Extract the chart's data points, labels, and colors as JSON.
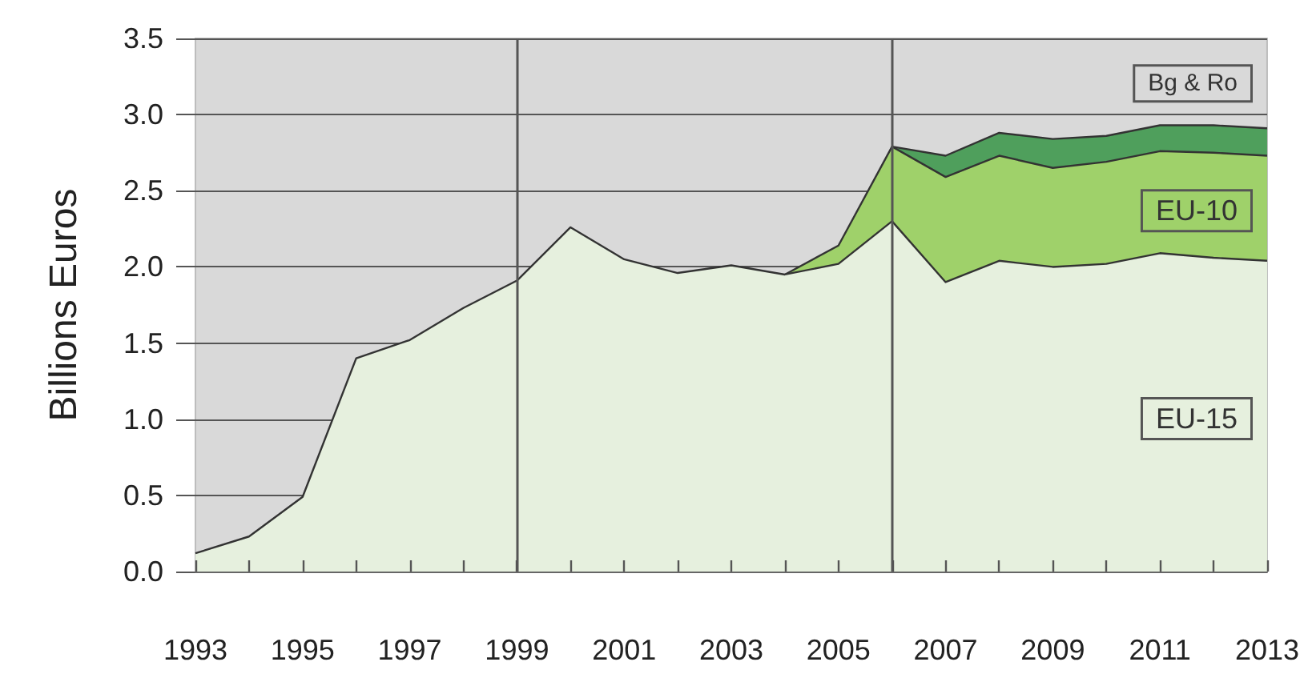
{
  "chart_data": {
    "type": "area",
    "stacked": true,
    "ylabel": "Billions Euros",
    "x": [
      1993,
      1994,
      1995,
      1996,
      1997,
      1998,
      1999,
      2000,
      2001,
      2002,
      2003,
      2004,
      2005,
      2006,
      2007,
      2008,
      2009,
      2010,
      2011,
      2012,
      2013
    ],
    "series": [
      {
        "name": "EU-15",
        "color": "#e6f0de",
        "values": [
          0.12,
          0.23,
          0.49,
          1.4,
          1.52,
          1.73,
          1.91,
          2.26,
          2.05,
          1.96,
          2.01,
          1.95,
          2.02,
          2.3,
          1.9,
          2.04,
          2.0,
          2.02,
          2.09,
          2.06,
          2.04
        ]
      },
      {
        "name": "EU-10",
        "color": "#9fd16a",
        "values": [
          null,
          null,
          null,
          null,
          null,
          null,
          null,
          null,
          null,
          null,
          null,
          0,
          0.12,
          0.49,
          0.69,
          0.69,
          0.65,
          0.67,
          0.67,
          0.69,
          0.69
        ]
      },
      {
        "name": "Bg & Ro",
        "color": "#4f9f5c",
        "values": [
          null,
          null,
          null,
          null,
          null,
          null,
          null,
          null,
          null,
          null,
          null,
          null,
          null,
          0,
          0.14,
          0.15,
          0.19,
          0.17,
          0.17,
          0.18,
          0.18
        ]
      }
    ],
    "xlim": [
      1993,
      2013
    ],
    "xticks": [
      1993,
      {
        "value": 1994,
        "label": null
      },
      1995,
      {
        "value": 1996,
        "label": null
      },
      1997,
      {
        "value": 1998,
        "label": null
      },
      1999,
      {
        "value": 2000,
        "label": null
      },
      2001,
      {
        "value": 2002,
        "label": null
      },
      2003,
      {
        "value": 2004,
        "label": null
      },
      2005,
      {
        "value": 2006,
        "label": null
      },
      2007,
      {
        "value": 2008,
        "label": null
      },
      2009,
      {
        "value": 2010,
        "label": null
      },
      2011,
      {
        "value": 2012,
        "label": null
      },
      2013
    ],
    "ylim": [
      0,
      3.5
    ],
    "yticks": [
      {
        "value": 0,
        "label": "0.0"
      },
      0.5,
      {
        "value": 1,
        "label": "1.0"
      },
      1.5,
      {
        "value": 2,
        "label": "2.0"
      },
      2.5,
      {
        "value": 3,
        "label": "3.0"
      },
      3.5
    ],
    "grid": "y",
    "ref_lines": [
      {
        "axis": "x",
        "value": 1999,
        "color": "#555555"
      },
      {
        "axis": "x",
        "value": 2006,
        "color": "#555555"
      }
    ]
  }
}
